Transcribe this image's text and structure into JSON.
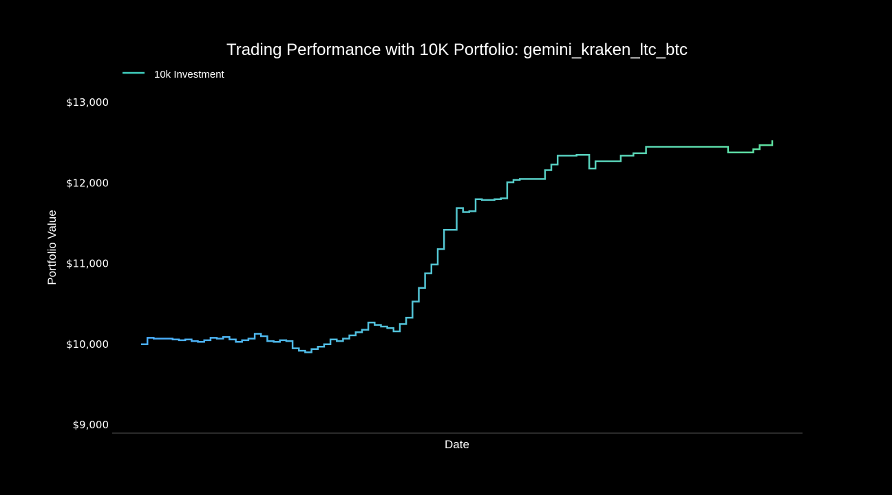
{
  "chart_data": {
    "type": "line",
    "title": "Trading Performance with 10K Portfolio: gemini_kraken_ltc_btc",
    "xlabel": "Date",
    "ylabel": "Portfolio Value",
    "ylim": [
      9000,
      13400
    ],
    "yticks": [
      {
        "value": 9000,
        "label": "$9,000"
      },
      {
        "value": 10000,
        "label": "$10,000"
      },
      {
        "value": 11000,
        "label": "$11,000"
      },
      {
        "value": 12000,
        "label": "$12,000"
      },
      {
        "value": 13000,
        "label": "$13,000"
      }
    ],
    "xticks_shown": false,
    "grid": false,
    "legend": {
      "position": "top-left"
    },
    "colors": {
      "background": "#000000",
      "text": "#ffffff",
      "axis": "#555555",
      "line_start": "#4aaeff",
      "line_end": "#5ee0a0",
      "legend_line": "#40d0c0"
    },
    "series": [
      {
        "name": "10k Investment",
        "drawstyle": "steps",
        "x": [
          0,
          1,
          2,
          3,
          4,
          5,
          6,
          7,
          8,
          9,
          10,
          11,
          12,
          13,
          14,
          15,
          16,
          17,
          18,
          19,
          20,
          21,
          22,
          23,
          24,
          25,
          26,
          27,
          28,
          29,
          30,
          31,
          32,
          33,
          34,
          35,
          36,
          37,
          38,
          39,
          40,
          41,
          42,
          43,
          44,
          45,
          46,
          47,
          48,
          49,
          50,
          51,
          52,
          53,
          54,
          55,
          56,
          57,
          58,
          59,
          60,
          61,
          62,
          63,
          64,
          65,
          66,
          67,
          68,
          69,
          70,
          71,
          72,
          73,
          74,
          75,
          76,
          77,
          78,
          79,
          80,
          81,
          82,
          83,
          84,
          85,
          86,
          87,
          88,
          89,
          90,
          91,
          92,
          93,
          94,
          95,
          96,
          97,
          98,
          99,
          100
        ],
        "y": [
          10000,
          10080,
          10070,
          10070,
          10070,
          10060,
          10050,
          10060,
          10040,
          10030,
          10050,
          10080,
          10070,
          10090,
          10060,
          10030,
          10050,
          10070,
          10130,
          10100,
          10040,
          10030,
          10050,
          10040,
          9950,
          9920,
          9900,
          9940,
          9970,
          10000,
          10060,
          10040,
          10070,
          10110,
          10150,
          10180,
          10270,
          10240,
          10220,
          10200,
          10160,
          10250,
          10330,
          10530,
          10700,
          10880,
          10990,
          11180,
          11420,
          11420,
          11690,
          11640,
          11650,
          11800,
          11790,
          11790,
          11800,
          11810,
          12010,
          12040,
          12050,
          12050,
          12050,
          12050,
          12160,
          12230,
          12340,
          12340,
          12340,
          12350,
          12350,
          12180,
          12270,
          12270,
          12270,
          12270,
          12340,
          12340,
          12370,
          12370,
          12450,
          12450,
          12450,
          12450,
          12450,
          12450,
          12450,
          12450,
          12450,
          12450,
          12450,
          12450,
          12450,
          12380,
          12380,
          12380,
          12380,
          12420,
          12470,
          12470,
          12530
        ]
      }
    ]
  }
}
